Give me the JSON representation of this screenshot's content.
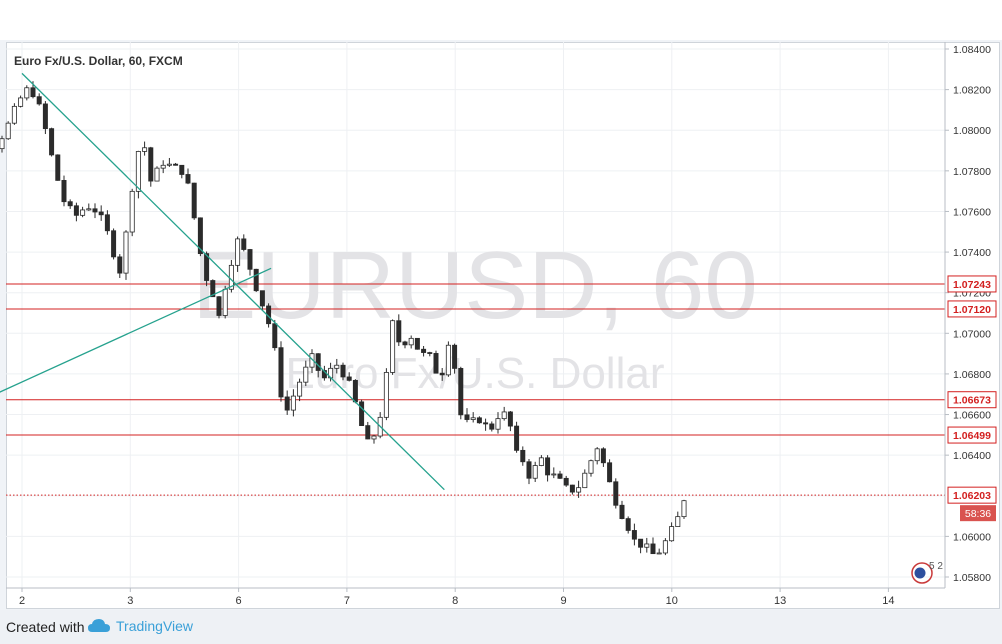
{
  "chart_data": {
    "type": "candlestick",
    "title": "Euro Fx/U.S. Dollar, 60, FXCM",
    "watermark": {
      "symbol": "EURUSD, 60",
      "name": "Euro Fx/U.S. Dollar"
    },
    "ylim": [
      1.0575,
      1.0845
    ],
    "y_ticks": [
      "1.08400",
      "1.08200",
      "1.08000",
      "1.07800",
      "1.07600",
      "1.07400",
      "1.07200",
      "1.07000",
      "1.06800",
      "1.06600",
      "1.06400",
      "1.06000",
      "1.05800"
    ],
    "x_ticks": [
      "2",
      "3",
      "6",
      "7",
      "8",
      "9",
      "10",
      "13",
      "14"
    ],
    "horizontal_levels": [
      {
        "label": "1.07243",
        "value": 1.07243,
        "style": "solid"
      },
      {
        "label": "1.07120",
        "value": 1.0712,
        "style": "solid"
      },
      {
        "label": "1.06673",
        "value": 1.06673,
        "style": "solid"
      },
      {
        "label": "1.06499",
        "value": 1.06499,
        "style": "solid"
      },
      {
        "label": "1.06203",
        "value": 1.06203,
        "style": "dotted"
      }
    ],
    "countdown": "58:36",
    "event_badge": "5 2",
    "trendlines": [
      {
        "from": [
          0,
          1.0828
        ],
        "to": [
          3.9,
          1.0623
        ]
      },
      {
        "from": [
          -0.7,
          1.0659
        ],
        "to": [
          2.3,
          1.0732
        ]
      }
    ],
    "close_path": [
      [
        -0.7,
        1.0769
      ],
      [
        -0.55,
        1.0773
      ],
      [
        -0.4,
        1.0784
      ],
      [
        -0.25,
        1.0792
      ],
      [
        -0.15,
        1.08
      ],
      [
        -0.05,
        1.0812
      ],
      [
        0.03,
        1.082
      ],
      [
        0.12,
        1.0818
      ],
      [
        0.2,
        1.0804
      ],
      [
        0.3,
        1.0781
      ],
      [
        0.4,
        1.0763
      ],
      [
        0.5,
        1.0758
      ],
      [
        0.6,
        1.0763
      ],
      [
        0.7,
        1.076
      ],
      [
        0.8,
        1.0748
      ],
      [
        0.9,
        1.073
      ],
      [
        0.98,
        1.0755
      ],
      [
        1.05,
        1.0787
      ],
      [
        1.12,
        1.0795
      ],
      [
        1.2,
        1.0772
      ],
      [
        1.28,
        1.0785
      ],
      [
        1.38,
        1.0782
      ],
      [
        1.48,
        1.078
      ],
      [
        1.55,
        1.077
      ],
      [
        1.62,
        1.0747
      ],
      [
        1.68,
        1.073
      ],
      [
        1.75,
        1.0722
      ],
      [
        1.82,
        1.0708
      ],
      [
        1.9,
        1.073
      ],
      [
        2.0,
        1.0747
      ],
      [
        2.1,
        1.0733
      ],
      [
        2.18,
        1.072
      ],
      [
        2.25,
        1.071
      ],
      [
        2.32,
        1.0697
      ],
      [
        2.38,
        1.0672
      ],
      [
        2.45,
        1.0662
      ],
      [
        2.55,
        1.0675
      ],
      [
        2.68,
        1.0688
      ],
      [
        2.78,
        1.0677
      ],
      [
        2.9,
        1.0685
      ],
      [
        3.0,
        1.0678
      ],
      [
        3.1,
        1.0662
      ],
      [
        3.18,
        1.0645
      ],
      [
        3.28,
        1.0652
      ],
      [
        3.35,
        1.0672
      ],
      [
        3.42,
        1.0705
      ],
      [
        3.5,
        1.0693
      ],
      [
        3.58,
        1.07
      ],
      [
        3.68,
        1.069
      ],
      [
        3.78,
        1.0688
      ],
      [
        3.86,
        1.0676
      ],
      [
        3.94,
        1.0697
      ],
      [
        4.0,
        1.0682
      ],
      [
        4.05,
        1.066
      ],
      [
        4.12,
        1.0655
      ],
      [
        4.22,
        1.0658
      ],
      [
        4.32,
        1.0652
      ],
      [
        4.42,
        1.0662
      ],
      [
        4.5,
        1.0657
      ],
      [
        4.55,
        1.0641
      ],
      [
        4.62,
        1.0638
      ],
      [
        4.7,
        1.0628
      ],
      [
        4.78,
        1.064
      ],
      [
        4.85,
        1.0632
      ],
      [
        4.95,
        1.0628
      ],
      [
        5.05,
        1.0622
      ],
      [
        5.15,
        1.0625
      ],
      [
        5.25,
        1.0637
      ],
      [
        5.32,
        1.0645
      ],
      [
        5.4,
        1.063
      ],
      [
        5.5,
        1.0615
      ],
      [
        5.58,
        1.0607
      ],
      [
        5.65,
        1.0598
      ],
      [
        5.75,
        1.0595
      ],
      [
        5.85,
        1.059
      ],
      [
        5.95,
        1.0598
      ],
      [
        6.05,
        1.0608
      ],
      [
        6.12,
        1.062
      ]
    ]
  },
  "footer": {
    "created_with": "Created with",
    "brand": "TradingView"
  },
  "colors": {
    "level_line": "#d32020",
    "trendline": "#26a28e",
    "candle": "#2b2b2b",
    "tick_text": "#333333"
  }
}
